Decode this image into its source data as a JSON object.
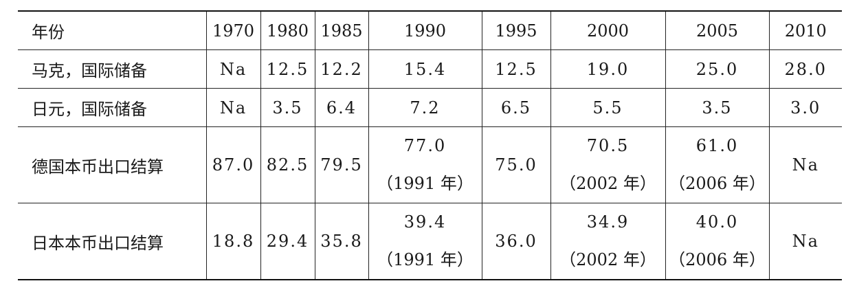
{
  "table": {
    "header": [
      "年份",
      "1970",
      "1980",
      "1985",
      "1990",
      "1995",
      "2000",
      "2005",
      "2010"
    ],
    "rows": [
      {
        "label": "马克，国际储备",
        "cells": [
          {
            "value": "Na"
          },
          {
            "value": "12.5"
          },
          {
            "value": "12.2"
          },
          {
            "value": "15.4"
          },
          {
            "value": "12.5"
          },
          {
            "value": "19.0"
          },
          {
            "value": "25.0"
          },
          {
            "value": "28.0"
          }
        ]
      },
      {
        "label": "日元，国际储备",
        "cells": [
          {
            "value": "Na"
          },
          {
            "value": "3.5"
          },
          {
            "value": "6.4"
          },
          {
            "value": "7.2"
          },
          {
            "value": "6.5"
          },
          {
            "value": "5.5"
          },
          {
            "value": "3.5"
          },
          {
            "value": "3.0"
          }
        ]
      },
      {
        "label": "德国本币出口结算",
        "cells": [
          {
            "value": "87.0"
          },
          {
            "value": "82.5"
          },
          {
            "value": "79.5"
          },
          {
            "value": "77.0",
            "note": "（1991 年）"
          },
          {
            "value": "75.0"
          },
          {
            "value": "70.5",
            "note": "（2002 年）"
          },
          {
            "value": "61.0",
            "note": "（2006 年）"
          },
          {
            "value": "Na"
          }
        ]
      },
      {
        "label": "日本本币出口结算",
        "cells": [
          {
            "value": "18.8"
          },
          {
            "value": "29.4"
          },
          {
            "value": "35.8"
          },
          {
            "value": "39.4",
            "note": "（1991 年）"
          },
          {
            "value": "36.0"
          },
          {
            "value": "34.9",
            "note": "（2002 年）"
          },
          {
            "value": "40.0",
            "note": "（2006 年）"
          },
          {
            "value": "Na"
          }
        ]
      }
    ]
  }
}
